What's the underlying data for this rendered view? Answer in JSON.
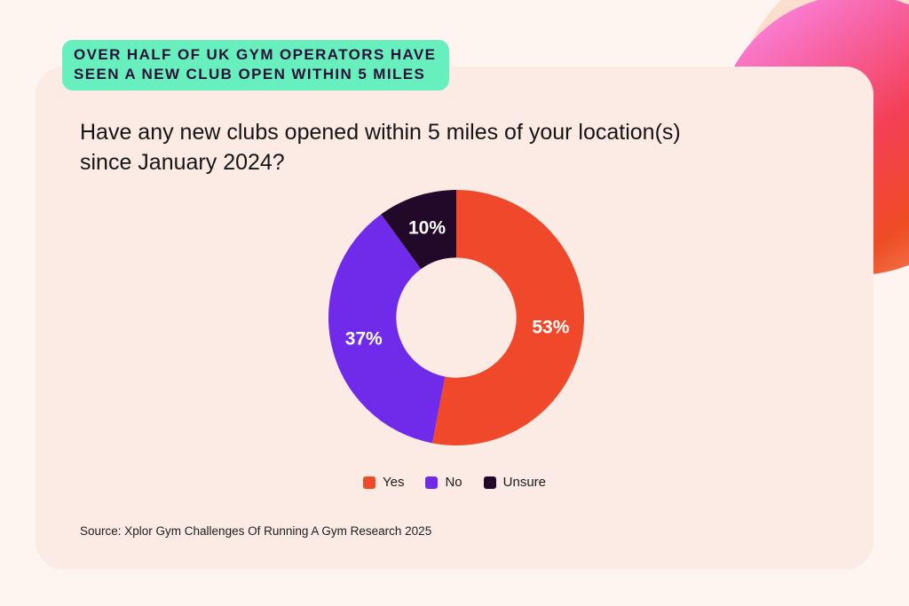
{
  "page": {
    "background_color": "#FEF5F1",
    "card_color": "#FCEBE4"
  },
  "badge": {
    "lines": [
      "OVER HALF OF UK GYM OPERATORS HAVE",
      "SEEN A NEW CLUB OPEN WITHIN 5 MILES"
    ],
    "bg_color": "#68EFBE",
    "text_color": "#2B1138"
  },
  "question": {
    "lines": [
      "Have any new clubs opened within 5 miles of your location(s)",
      "since January 2024?"
    ]
  },
  "chart_data": {
    "type": "pie",
    "subtype": "donut",
    "title": "Have any new clubs opened within 5 miles of your location(s) since January 2024?",
    "labels": [
      "Yes",
      "No",
      "Unsure"
    ],
    "values": [
      53,
      37,
      10
    ],
    "data_labels": [
      "53%",
      "37%",
      "10%"
    ],
    "colors": [
      "#F0482B",
      "#6F2BE9",
      "#220829"
    ],
    "label_text_color": "#FFFFFF",
    "start_angle_deg": 0,
    "direction": "clockwise",
    "inner_radius_ratio": 0.47,
    "legend_position": "bottom"
  },
  "source": {
    "text": "Source: Xplor Gym Challenges Of Running A Gym Research 2025"
  }
}
